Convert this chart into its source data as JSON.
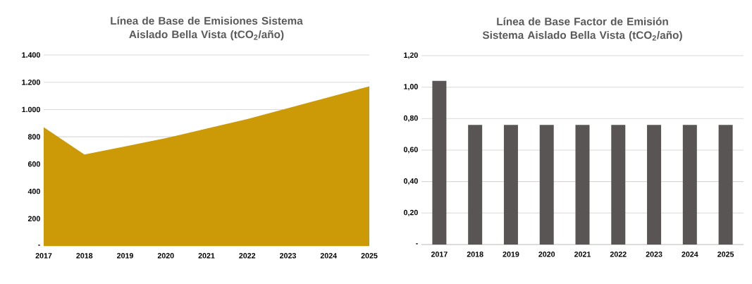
{
  "chart_data": [
    {
      "type": "area",
      "title": "Línea de Base de Emisiones Sistema Aislado Bella Vista (tCO$_{2}$/año)",
      "categories": [
        "2017",
        "2018",
        "2019",
        "2020",
        "2021",
        "2022",
        "2023",
        "2024",
        "2025"
      ],
      "values": [
        870,
        670,
        730,
        790,
        860,
        930,
        1010,
        1090,
        1170
      ],
      "color": "#cc9a06",
      "ylim": [
        0,
        1400
      ],
      "yticks": [
        {
          "value": 0,
          "label": "-"
        },
        200,
        400,
        600,
        800,
        {
          "value": 1000,
          "label": "1.000"
        },
        {
          "value": 1200,
          "label": "1.200"
        },
        {
          "value": 1400,
          "label": "1.400"
        }
      ],
      "grid": "y"
    },
    {
      "type": "bar",
      "title": "Línea de Base Factor de Emisión Sistema Aislado Bella Vista (tCO$_{2}$/año)",
      "categories": [
        "2017",
        "2018",
        "2019",
        "2020",
        "2021",
        "2022",
        "2023",
        "2024",
        "2025"
      ],
      "values": [
        1.04,
        0.76,
        0.76,
        0.76,
        0.76,
        0.76,
        0.76,
        0.76,
        0.76
      ],
      "color": "#5a5555",
      "ylim": [
        0,
        1.2
      ],
      "yticks": [
        {
          "value": 0,
          "label": "-"
        },
        {
          "value": 0.2,
          "label": "0,20"
        },
        {
          "value": 0.4,
          "label": "0,40"
        },
        {
          "value": 0.6,
          "label": "0,60"
        },
        {
          "value": 0.8,
          "label": "0,80"
        },
        {
          "value": 1.0,
          "label": "1,00"
        },
        {
          "value": 1.2,
          "label": "1,20"
        }
      ],
      "grid": "y"
    }
  ]
}
